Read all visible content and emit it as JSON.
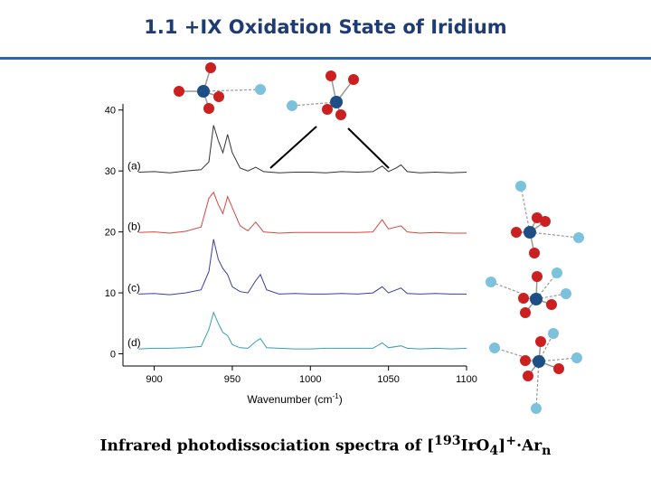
{
  "slide": {
    "title": "1.1 +IX Oxidation State of Iridium",
    "caption": {
      "prefix": "Infrared photodissociation spectra of [",
      "isotope": "193",
      "formula": "IrO",
      "sub_o": "4",
      "bracket_close": "]",
      "charge": "+",
      "sep": "·Ar",
      "sub_n": "n"
    }
  },
  "colors": {
    "title": "#1f3b73",
    "rule": "#2f66a8",
    "oxygen": "#cc1f1f",
    "iridium": "#1d4f86",
    "argon": "#7cc2dc"
  },
  "chart_data": {
    "type": "line",
    "title": "",
    "xlabel": "Wavenumber (cm",
    "xlabel_sup": "-1",
    "xlabel_close": ")",
    "ylabel": "",
    "xlim": [
      880,
      1100
    ],
    "ylim": [
      -2,
      41
    ],
    "xticks": [
      900,
      950,
      1000,
      1050,
      1100
    ],
    "yticks": [
      0,
      10,
      20,
      30,
      40
    ],
    "grid": false,
    "legend": "none",
    "series": [
      {
        "name": "(a)",
        "color": "#333333",
        "points": [
          [
            890,
            29.8
          ],
          [
            900,
            29.9
          ],
          [
            910,
            29.7
          ],
          [
            920,
            30.0
          ],
          [
            930,
            30.2
          ],
          [
            935,
            31.5
          ],
          [
            938,
            37.5
          ],
          [
            941,
            35.0
          ],
          [
            944,
            33.0
          ],
          [
            947,
            36.0
          ],
          [
            950,
            33.0
          ],
          [
            955,
            30.5
          ],
          [
            960,
            30.0
          ],
          [
            965,
            30.6
          ],
          [
            970,
            29.9
          ],
          [
            980,
            29.7
          ],
          [
            990,
            29.8
          ],
          [
            1000,
            29.8
          ],
          [
            1010,
            29.7
          ],
          [
            1020,
            29.9
          ],
          [
            1030,
            29.8
          ],
          [
            1040,
            29.9
          ],
          [
            1046,
            30.8
          ],
          [
            1050,
            29.9
          ],
          [
            1055,
            30.5
          ],
          [
            1058,
            31.0
          ],
          [
            1062,
            29.9
          ],
          [
            1070,
            29.7
          ],
          [
            1080,
            29.8
          ],
          [
            1090,
            29.7
          ],
          [
            1100,
            29.8
          ]
        ]
      },
      {
        "name": "(b)",
        "color": "#d9453f",
        "points": [
          [
            890,
            19.9
          ],
          [
            900,
            20.0
          ],
          [
            910,
            19.8
          ],
          [
            920,
            20.1
          ],
          [
            930,
            20.8
          ],
          [
            935,
            25.5
          ],
          [
            938,
            26.5
          ],
          [
            941,
            24.5
          ],
          [
            944,
            23.0
          ],
          [
            947,
            25.8
          ],
          [
            950,
            24.0
          ],
          [
            955,
            21.0
          ],
          [
            960,
            20.2
          ],
          [
            965,
            21.6
          ],
          [
            970,
            20.0
          ],
          [
            980,
            19.8
          ],
          [
            990,
            19.9
          ],
          [
            1000,
            19.9
          ],
          [
            1010,
            19.9
          ],
          [
            1020,
            19.9
          ],
          [
            1030,
            19.9
          ],
          [
            1040,
            20.0
          ],
          [
            1046,
            22.0
          ],
          [
            1050,
            20.5
          ],
          [
            1058,
            21.0
          ],
          [
            1062,
            20.0
          ],
          [
            1070,
            19.8
          ],
          [
            1080,
            19.9
          ],
          [
            1090,
            19.8
          ],
          [
            1100,
            19.8
          ]
        ]
      },
      {
        "name": "(c)",
        "color": "#3a3f9c",
        "points": [
          [
            890,
            9.8
          ],
          [
            900,
            9.9
          ],
          [
            910,
            9.7
          ],
          [
            920,
            10.0
          ],
          [
            930,
            10.5
          ],
          [
            935,
            13.5
          ],
          [
            938,
            18.8
          ],
          [
            941,
            15.5
          ],
          [
            944,
            14.0
          ],
          [
            947,
            13.0
          ],
          [
            950,
            11.0
          ],
          [
            955,
            10.2
          ],
          [
            960,
            10.0
          ],
          [
            965,
            12.0
          ],
          [
            968,
            13.0
          ],
          [
            972,
            10.5
          ],
          [
            980,
            9.8
          ],
          [
            990,
            9.9
          ],
          [
            1000,
            9.8
          ],
          [
            1010,
            9.8
          ],
          [
            1020,
            9.9
          ],
          [
            1030,
            9.8
          ],
          [
            1040,
            10.0
          ],
          [
            1046,
            11.0
          ],
          [
            1050,
            10.0
          ],
          [
            1058,
            10.8
          ],
          [
            1062,
            9.9
          ],
          [
            1070,
            9.8
          ],
          [
            1080,
            9.9
          ],
          [
            1090,
            9.8
          ],
          [
            1100,
            9.8
          ]
        ]
      },
      {
        "name": "(d)",
        "color": "#3a9db0",
        "points": [
          [
            890,
            0.8
          ],
          [
            900,
            0.9
          ],
          [
            910,
            0.9
          ],
          [
            920,
            1.0
          ],
          [
            930,
            1.2
          ],
          [
            935,
            4.0
          ],
          [
            938,
            6.8
          ],
          [
            941,
            5.0
          ],
          [
            944,
            3.5
          ],
          [
            947,
            3.0
          ],
          [
            950,
            1.5
          ],
          [
            955,
            1.0
          ],
          [
            960,
            0.9
          ],
          [
            965,
            2.0
          ],
          [
            968,
            2.5
          ],
          [
            972,
            1.0
          ],
          [
            980,
            0.9
          ],
          [
            990,
            0.8
          ],
          [
            1000,
            0.8
          ],
          [
            1010,
            0.9
          ],
          [
            1020,
            0.9
          ],
          [
            1030,
            0.9
          ],
          [
            1040,
            0.9
          ],
          [
            1046,
            1.8
          ],
          [
            1050,
            1.0
          ],
          [
            1058,
            1.3
          ],
          [
            1062,
            0.9
          ],
          [
            1070,
            0.8
          ],
          [
            1080,
            0.9
          ],
          [
            1090,
            0.8
          ],
          [
            1100,
            0.9
          ]
        ]
      }
    ]
  }
}
